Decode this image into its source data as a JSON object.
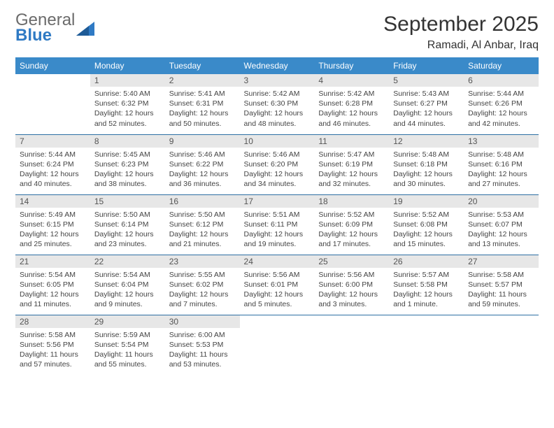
{
  "brand": {
    "word1": "General",
    "word2": "Blue"
  },
  "title": "September 2025",
  "location": "Ramadi, Al Anbar, Iraq",
  "colors": {
    "header_bg": "#3a8ac9",
    "header_text": "#ffffff",
    "daynum_bg": "#e7e7e7",
    "row_border": "#2d6fa3",
    "body_text": "#444444",
    "brand_gray": "#6b6b6b",
    "brand_blue": "#2f7ac4"
  },
  "weekdays": [
    "Sunday",
    "Monday",
    "Tuesday",
    "Wednesday",
    "Thursday",
    "Friday",
    "Saturday"
  ],
  "weeks": [
    [
      {
        "n": "",
        "sr": "",
        "ss": "",
        "dl": "",
        "empty": true
      },
      {
        "n": "1",
        "sr": "Sunrise: 5:40 AM",
        "ss": "Sunset: 6:32 PM",
        "dl": "Daylight: 12 hours and 52 minutes."
      },
      {
        "n": "2",
        "sr": "Sunrise: 5:41 AM",
        "ss": "Sunset: 6:31 PM",
        "dl": "Daylight: 12 hours and 50 minutes."
      },
      {
        "n": "3",
        "sr": "Sunrise: 5:42 AM",
        "ss": "Sunset: 6:30 PM",
        "dl": "Daylight: 12 hours and 48 minutes."
      },
      {
        "n": "4",
        "sr": "Sunrise: 5:42 AM",
        "ss": "Sunset: 6:28 PM",
        "dl": "Daylight: 12 hours and 46 minutes."
      },
      {
        "n": "5",
        "sr": "Sunrise: 5:43 AM",
        "ss": "Sunset: 6:27 PM",
        "dl": "Daylight: 12 hours and 44 minutes."
      },
      {
        "n": "6",
        "sr": "Sunrise: 5:44 AM",
        "ss": "Sunset: 6:26 PM",
        "dl": "Daylight: 12 hours and 42 minutes."
      }
    ],
    [
      {
        "n": "7",
        "sr": "Sunrise: 5:44 AM",
        "ss": "Sunset: 6:24 PM",
        "dl": "Daylight: 12 hours and 40 minutes."
      },
      {
        "n": "8",
        "sr": "Sunrise: 5:45 AM",
        "ss": "Sunset: 6:23 PM",
        "dl": "Daylight: 12 hours and 38 minutes."
      },
      {
        "n": "9",
        "sr": "Sunrise: 5:46 AM",
        "ss": "Sunset: 6:22 PM",
        "dl": "Daylight: 12 hours and 36 minutes."
      },
      {
        "n": "10",
        "sr": "Sunrise: 5:46 AM",
        "ss": "Sunset: 6:20 PM",
        "dl": "Daylight: 12 hours and 34 minutes."
      },
      {
        "n": "11",
        "sr": "Sunrise: 5:47 AM",
        "ss": "Sunset: 6:19 PM",
        "dl": "Daylight: 12 hours and 32 minutes."
      },
      {
        "n": "12",
        "sr": "Sunrise: 5:48 AM",
        "ss": "Sunset: 6:18 PM",
        "dl": "Daylight: 12 hours and 30 minutes."
      },
      {
        "n": "13",
        "sr": "Sunrise: 5:48 AM",
        "ss": "Sunset: 6:16 PM",
        "dl": "Daylight: 12 hours and 27 minutes."
      }
    ],
    [
      {
        "n": "14",
        "sr": "Sunrise: 5:49 AM",
        "ss": "Sunset: 6:15 PM",
        "dl": "Daylight: 12 hours and 25 minutes."
      },
      {
        "n": "15",
        "sr": "Sunrise: 5:50 AM",
        "ss": "Sunset: 6:14 PM",
        "dl": "Daylight: 12 hours and 23 minutes."
      },
      {
        "n": "16",
        "sr": "Sunrise: 5:50 AM",
        "ss": "Sunset: 6:12 PM",
        "dl": "Daylight: 12 hours and 21 minutes."
      },
      {
        "n": "17",
        "sr": "Sunrise: 5:51 AM",
        "ss": "Sunset: 6:11 PM",
        "dl": "Daylight: 12 hours and 19 minutes."
      },
      {
        "n": "18",
        "sr": "Sunrise: 5:52 AM",
        "ss": "Sunset: 6:09 PM",
        "dl": "Daylight: 12 hours and 17 minutes."
      },
      {
        "n": "19",
        "sr": "Sunrise: 5:52 AM",
        "ss": "Sunset: 6:08 PM",
        "dl": "Daylight: 12 hours and 15 minutes."
      },
      {
        "n": "20",
        "sr": "Sunrise: 5:53 AM",
        "ss": "Sunset: 6:07 PM",
        "dl": "Daylight: 12 hours and 13 minutes."
      }
    ],
    [
      {
        "n": "21",
        "sr": "Sunrise: 5:54 AM",
        "ss": "Sunset: 6:05 PM",
        "dl": "Daylight: 12 hours and 11 minutes."
      },
      {
        "n": "22",
        "sr": "Sunrise: 5:54 AM",
        "ss": "Sunset: 6:04 PM",
        "dl": "Daylight: 12 hours and 9 minutes."
      },
      {
        "n": "23",
        "sr": "Sunrise: 5:55 AM",
        "ss": "Sunset: 6:02 PM",
        "dl": "Daylight: 12 hours and 7 minutes."
      },
      {
        "n": "24",
        "sr": "Sunrise: 5:56 AM",
        "ss": "Sunset: 6:01 PM",
        "dl": "Daylight: 12 hours and 5 minutes."
      },
      {
        "n": "25",
        "sr": "Sunrise: 5:56 AM",
        "ss": "Sunset: 6:00 PM",
        "dl": "Daylight: 12 hours and 3 minutes."
      },
      {
        "n": "26",
        "sr": "Sunrise: 5:57 AM",
        "ss": "Sunset: 5:58 PM",
        "dl": "Daylight: 12 hours and 1 minute."
      },
      {
        "n": "27",
        "sr": "Sunrise: 5:58 AM",
        "ss": "Sunset: 5:57 PM",
        "dl": "Daylight: 11 hours and 59 minutes."
      }
    ],
    [
      {
        "n": "28",
        "sr": "Sunrise: 5:58 AM",
        "ss": "Sunset: 5:56 PM",
        "dl": "Daylight: 11 hours and 57 minutes."
      },
      {
        "n": "29",
        "sr": "Sunrise: 5:59 AM",
        "ss": "Sunset: 5:54 PM",
        "dl": "Daylight: 11 hours and 55 minutes."
      },
      {
        "n": "30",
        "sr": "Sunrise: 6:00 AM",
        "ss": "Sunset: 5:53 PM",
        "dl": "Daylight: 11 hours and 53 minutes."
      },
      {
        "n": "",
        "sr": "",
        "ss": "",
        "dl": "",
        "empty": true
      },
      {
        "n": "",
        "sr": "",
        "ss": "",
        "dl": "",
        "empty": true
      },
      {
        "n": "",
        "sr": "",
        "ss": "",
        "dl": "",
        "empty": true
      },
      {
        "n": "",
        "sr": "",
        "ss": "",
        "dl": "",
        "empty": true
      }
    ]
  ]
}
